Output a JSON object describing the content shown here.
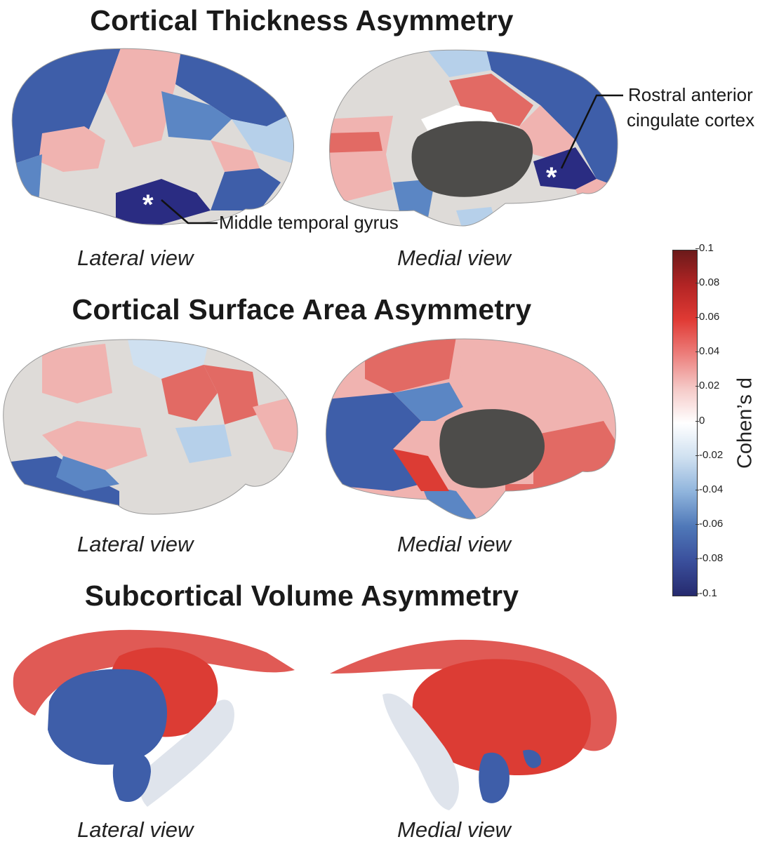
{
  "panels": {
    "thickness": {
      "title": "Cortical Thickness Asymmetry",
      "lateral_label": "Lateral view",
      "medial_label": "Medial view"
    },
    "surface": {
      "title": "Cortical Surface Area Asymmetry",
      "lateral_label": "Lateral view",
      "medial_label": "Medial view"
    },
    "subcortical": {
      "title": "Subcortical Volume Asymmetry",
      "lateral_label": "Lateral view",
      "medial_label": "Medial view"
    }
  },
  "annotations": {
    "mtg": {
      "text": "Middle temporal gyrus",
      "marker": "*"
    },
    "racc": {
      "line1": "Rostral anterior",
      "line2": "cingulate cortex",
      "marker": "*"
    }
  },
  "colorbar": {
    "label": "Cohen’s d",
    "ticks": [
      "0.1",
      "0.08",
      "0.06",
      "0.04",
      "0.02",
      "0",
      "-0.02",
      "-0.04",
      "-0.06",
      "-0.08",
      "-0.1"
    ],
    "range": [
      -0.1,
      0.1
    ],
    "colors": [
      "#6b1a1a",
      "#b22424",
      "#e03a34",
      "#ec7e7b",
      "#f5c9c7",
      "#ffffff",
      "#cfe0f0",
      "#8fb4dc",
      "#4f78b8",
      "#3a4f9c",
      "#262a6e"
    ]
  },
  "region_colors": {
    "strong_blue": "#3e5ea9",
    "mid_blue": "#5b86c4",
    "light_blue": "#b6d0ea",
    "navy": "#2a2c82",
    "neutral": "#dedbd8",
    "light_red": "#f0b3b0",
    "mid_red": "#e26a64",
    "strong_red": "#dc3c34",
    "subcortical_gray": "#4d4c4a"
  }
}
